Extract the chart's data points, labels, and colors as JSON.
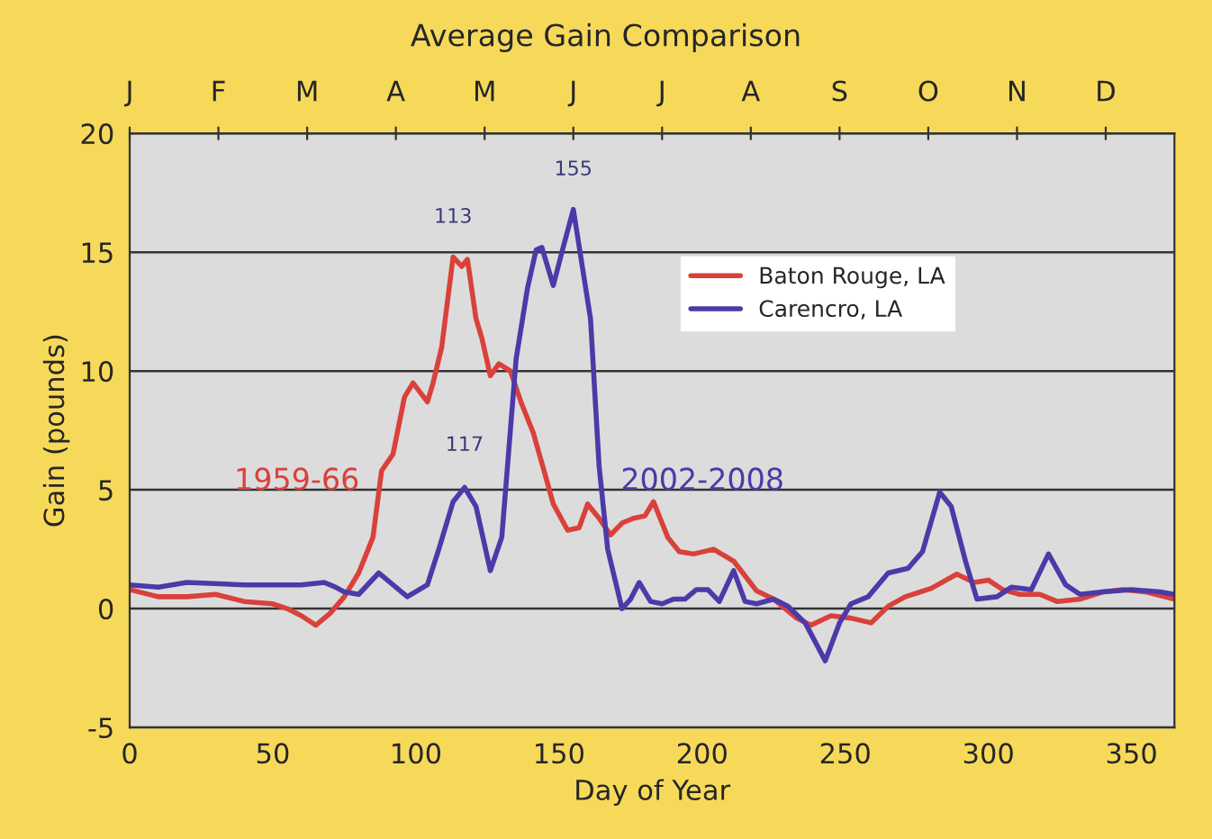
{
  "chart_data": {
    "type": "line",
    "title": "Average Gain Comparison",
    "xlabel": "Day of Year",
    "ylabel": "Gain (pounds)",
    "xlim": [
      0,
      365
    ],
    "xticks": [
      0,
      50,
      100,
      150,
      200,
      250,
      300,
      350
    ],
    "ylim": [
      -5,
      20
    ],
    "yticks": [
      -5,
      0,
      5,
      10,
      15,
      20
    ],
    "grid": "y",
    "legend": "top right",
    "line_style": "solid",
    "marker": "none",
    "annotations": [
      "1959-66",
      "2002-2008",
      "J",
      "F",
      "M",
      "A",
      "M",
      "J",
      "J",
      "A",
      "S",
      "O",
      "N",
      "D",
      {
        "text": "113",
        "x": 113,
        "y": 14.8
      },
      {
        "text": "155",
        "x": 155,
        "y": 16.8
      },
      {
        "text": "117",
        "x": 117,
        "y": 5.2
      }
    ],
    "series": [
      {
        "name": "Baton Rouge, LA",
        "color": "#d9413a",
        "x": [
          0,
          10,
          20,
          30,
          40,
          50,
          55,
          60,
          65,
          70,
          75,
          80,
          85,
          88,
          92,
          96,
          99,
          104,
          106,
          109,
          113,
          116,
          118,
          121,
          123,
          126,
          129,
          133,
          137,
          141,
          145,
          148,
          153,
          157,
          160,
          164,
          168,
          172,
          176,
          180,
          183,
          188,
          192,
          197,
          204,
          211,
          219,
          225,
          233,
          238,
          245,
          252,
          259,
          265,
          271,
          280,
          289,
          295,
          300,
          305,
          311,
          318,
          324,
          332,
          340,
          347,
          355,
          365
        ],
        "values": [
          0.8,
          0.5,
          0.5,
          0.6,
          0.3,
          0.2,
          0.0,
          -0.3,
          -0.7,
          -0.2,
          0.5,
          1.5,
          3.0,
          5.8,
          6.5,
          8.9,
          9.5,
          8.7,
          9.5,
          11.0,
          14.8,
          14.4,
          14.7,
          12.2,
          11.4,
          9.8,
          10.3,
          10.0,
          8.6,
          7.4,
          5.7,
          4.4,
          3.3,
          3.4,
          4.4,
          3.8,
          3.1,
          3.6,
          3.8,
          3.9,
          4.5,
          3.0,
          2.4,
          2.3,
          2.5,
          2.0,
          0.75,
          0.4,
          -0.4,
          -0.7,
          -0.3,
          -0.4,
          -0.6,
          0.1,
          0.5,
          0.85,
          1.45,
          1.1,
          1.2,
          0.8,
          0.6,
          0.6,
          0.3,
          0.4,
          0.7,
          0.8,
          0.7,
          0.4
        ]
      },
      {
        "name": "Carencro, LA",
        "color": "#4b3aa8",
        "x": [
          0,
          10,
          20,
          40,
          60,
          68,
          72,
          75,
          80,
          87,
          92,
          97,
          104,
          108,
          113,
          117,
          121,
          126,
          130,
          133,
          135,
          139,
          142,
          144,
          148,
          151,
          155,
          158,
          161,
          164,
          167,
          172,
          175,
          178,
          182,
          186,
          190,
          194,
          198,
          202,
          206,
          211,
          215,
          219,
          225,
          230,
          236,
          243,
          248,
          252,
          258,
          265,
          272,
          277,
          283,
          287,
          292,
          296,
          303,
          308,
          315,
          321,
          327,
          332,
          340,
          350,
          360,
          365
        ],
        "values": [
          1.0,
          0.9,
          1.1,
          1.0,
          1.0,
          1.1,
          0.9,
          0.7,
          0.6,
          1.5,
          1.0,
          0.5,
          1.0,
          2.5,
          4.5,
          5.1,
          4.3,
          1.6,
          3.0,
          7.5,
          10.5,
          13.5,
          15.1,
          15.2,
          13.6,
          15.0,
          16.8,
          14.5,
          12.2,
          6.0,
          2.5,
          0.0,
          0.4,
          1.1,
          0.3,
          0.2,
          0.4,
          0.4,
          0.8,
          0.8,
          0.3,
          1.6,
          0.3,
          0.2,
          0.4,
          0.1,
          -0.6,
          -2.2,
          -0.6,
          0.2,
          0.5,
          1.5,
          1.7,
          2.4,
          4.9,
          4.3,
          2.0,
          0.4,
          0.5,
          0.9,
          0.8,
          2.3,
          1.0,
          0.6,
          0.7,
          0.8,
          0.7,
          0.6
        ]
      }
    ]
  }
}
